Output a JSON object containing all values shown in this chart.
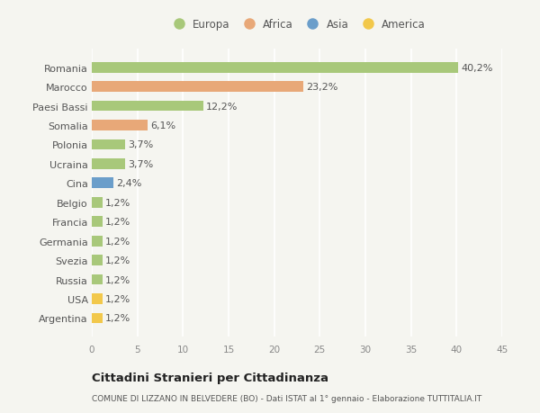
{
  "categories": [
    "Argentina",
    "USA",
    "Russia",
    "Svezia",
    "Germania",
    "Francia",
    "Belgio",
    "Cina",
    "Ucraina",
    "Polonia",
    "Somalia",
    "Paesi Bassi",
    "Marocco",
    "Romania"
  ],
  "values": [
    1.2,
    1.2,
    1.2,
    1.2,
    1.2,
    1.2,
    1.2,
    2.4,
    3.7,
    3.7,
    6.1,
    12.2,
    23.2,
    40.2
  ],
  "labels": [
    "1,2%",
    "1,2%",
    "1,2%",
    "1,2%",
    "1,2%",
    "1,2%",
    "1,2%",
    "2,4%",
    "3,7%",
    "3,7%",
    "6,1%",
    "12,2%",
    "23,2%",
    "40,2%"
  ],
  "colors": [
    "#f2c84b",
    "#f2c84b",
    "#a8c87a",
    "#a8c87a",
    "#a8c87a",
    "#a8c87a",
    "#a8c87a",
    "#6b9eca",
    "#a8c87a",
    "#a8c87a",
    "#e8a878",
    "#a8c87a",
    "#e8a878",
    "#a8c87a"
  ],
  "legend": [
    {
      "label": "Europa",
      "color": "#a8c87a"
    },
    {
      "label": "Africa",
      "color": "#e8a878"
    },
    {
      "label": "Asia",
      "color": "#6b9eca"
    },
    {
      "label": "America",
      "color": "#f2c84b"
    }
  ],
  "xlim": [
    0,
    45
  ],
  "xticks": [
    0,
    5,
    10,
    15,
    20,
    25,
    30,
    35,
    40,
    45
  ],
  "title": "Cittadini Stranieri per Cittadinanza",
  "subtitle": "COMUNE DI LIZZANO IN BELVEDERE (BO) - Dati ISTAT al 1° gennaio - Elaborazione TUTTITALIA.IT",
  "bg_color": "#f5f5f0",
  "grid_color": "#ffffff",
  "bar_height": 0.55,
  "label_fontsize": 8,
  "ytick_fontsize": 8,
  "xtick_fontsize": 7.5
}
